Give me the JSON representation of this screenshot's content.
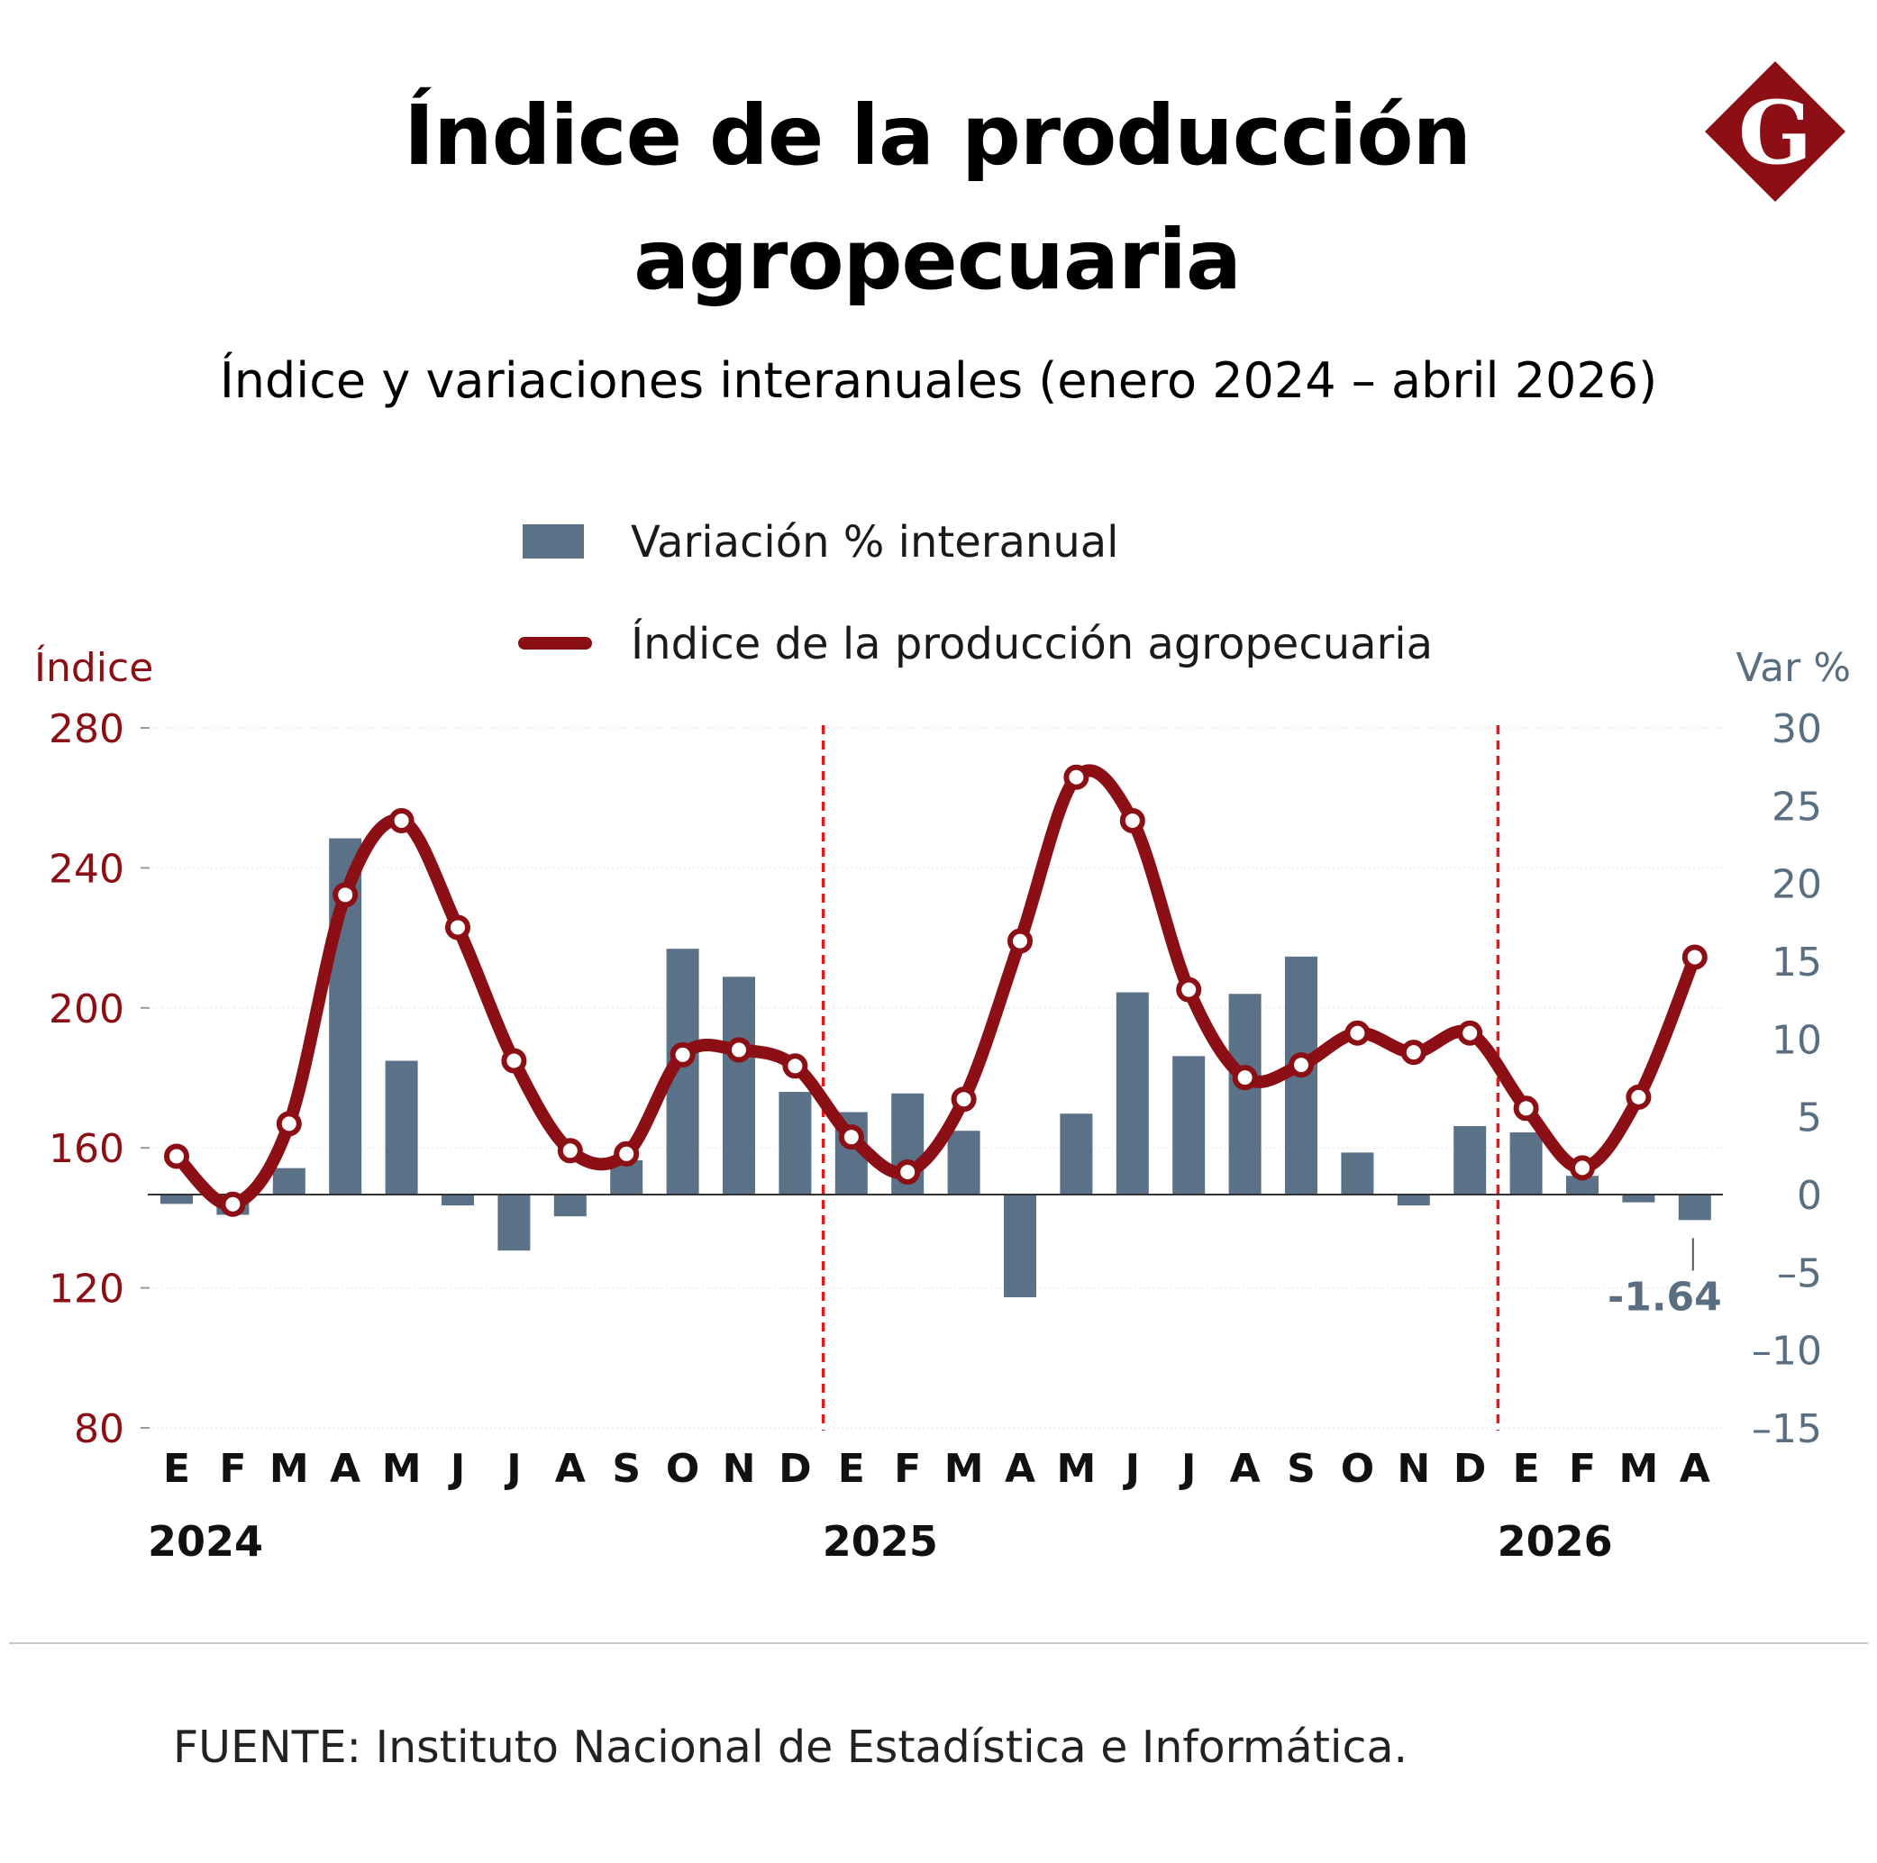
{
  "title": "Índice de la producción agropecuaria",
  "subtitle": "Índice y variaciones interanuales (enero 2024 – abril 2026)",
  "logo_letter": "G",
  "source": "FUENTE: Instituto Nacional de Estadística e Informática.",
  "colors": {
    "bar": "#5a7188",
    "line": "#8b0f14",
    "divider": "#e01b1b",
    "left_axis": "#8b0f14",
    "right_axis": "#5a6e82",
    "logo": "#8b0f14"
  },
  "chart_data": {
    "type": "bar+line",
    "legend": {
      "bar_label": "Variación % interanual",
      "line_label": "Índice de la producción agropecuaria",
      "placement": "top-center"
    },
    "y_left": {
      "label": "Índice",
      "ylim": [
        80,
        280
      ],
      "ticks": [
        "80",
        "120",
        "160",
        "200",
        "240",
        "280"
      ]
    },
    "y_right": {
      "label": "Var %",
      "ylim": [
        -15,
        30
      ],
      "ticks": [
        "30",
        "25",
        "20",
        "15",
        "10",
        "5",
        "0",
        "–5",
        "–10",
        "–15"
      ]
    },
    "months": [
      "E",
      "F",
      "M",
      "A",
      "M",
      "J",
      "J",
      "A",
      "S",
      "O",
      "N",
      "D",
      "E",
      "F",
      "M",
      "A",
      "M",
      "J",
      "J",
      "A",
      "S",
      "O",
      "N",
      "D",
      "E",
      "F",
      "M",
      "A"
    ],
    "years": [
      {
        "label": "2024",
        "start_index": 0
      },
      {
        "label": "2025",
        "start_index": 12
      },
      {
        "label": "2026",
        "start_index": 24
      }
    ],
    "series": [
      {
        "name": "Variación % interanual",
        "type": "bar",
        "axis": "right",
        "values": [
          -0.6,
          -1.3,
          1.7,
          22.9,
          8.6,
          -0.7,
          -3.6,
          -1.4,
          2.2,
          15.8,
          14.0,
          6.6,
          5.3,
          6.5,
          4.1,
          -6.6,
          5.2,
          13.0,
          8.9,
          12.9,
          15.3,
          2.7,
          -0.7,
          4.4,
          4.0,
          1.2,
          -0.5,
          -1.64
        ]
      },
      {
        "name": "Índice de la producción agropecuaria",
        "type": "line",
        "axis": "left",
        "values": [
          157.6,
          143.9,
          166.9,
          232.3,
          253.5,
          223.0,
          184.9,
          159.2,
          158.3,
          186.6,
          188.0,
          183.4,
          163.1,
          153.1,
          173.9,
          219.1,
          265.9,
          253.5,
          205.2,
          180.1,
          183.7,
          192.8,
          187.3,
          192.8,
          171.3,
          154.3,
          174.5,
          214.5
        ]
      }
    ],
    "annotations": [
      {
        "text": "-1.64",
        "index": 27,
        "series": "Variación % interanual"
      }
    ],
    "year_dividers_after_index": [
      11,
      23
    ]
  }
}
